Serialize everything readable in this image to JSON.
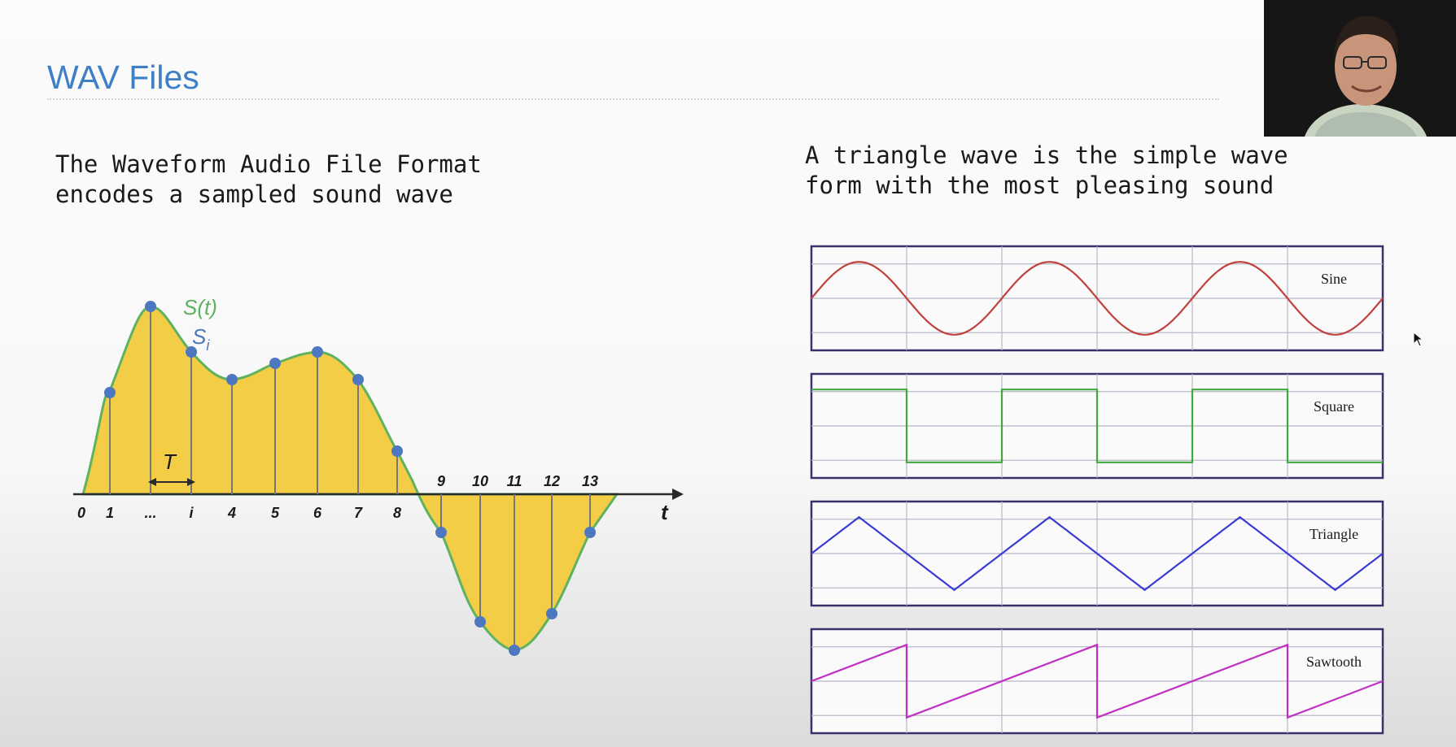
{
  "slide": {
    "title": "WAV Files",
    "left_text": [
      "The Waveform Audio File Format",
      "encodes a sampled sound wave"
    ],
    "right_text": [
      "A triangle wave is the simple wave",
      "form with the most pleasing sound"
    ]
  },
  "sampling_figure": {
    "signal_label": "S(t)",
    "sample_label": "S",
    "sample_subscript": "i",
    "period_label": "T",
    "time_axis_label": "t",
    "tick_labels": [
      "0",
      "1",
      "...",
      "i",
      "4",
      "5",
      "6",
      "7",
      "8",
      "9",
      "10",
      "11",
      "12",
      "13"
    ],
    "colors": {
      "fill": "#f3cd45",
      "curve": "#5fb25f",
      "sample": "#4d78c0",
      "axis": "#2a2a2a"
    }
  },
  "waveforms": [
    {
      "name": "Sine",
      "color": "#c0403c"
    },
    {
      "name": "Square",
      "color": "#3fa83f"
    },
    {
      "name": "Triangle",
      "color": "#3a3ad6"
    },
    {
      "name": "Sawtooth",
      "color": "#c02fc2"
    }
  ],
  "panel_colors": {
    "frame": "#3b2f6e",
    "grid": "#b8b8c8"
  },
  "webcam": {
    "description_icon": "presenter-video-icon"
  }
}
